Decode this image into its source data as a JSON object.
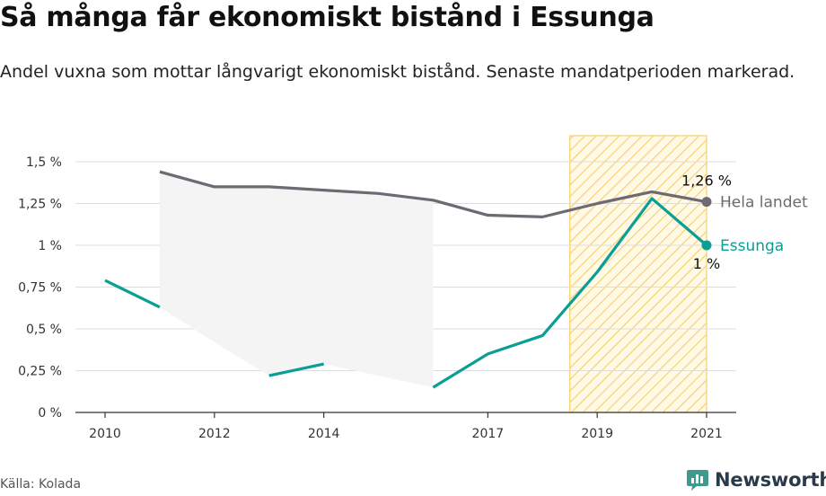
{
  "title": "Så många får ekonomiskt bistånd i Essunga",
  "subtitle": "Andel vuxna som mottar långvarigt ekonomiskt bistånd. Senaste mandatperioden markerad.",
  "source": "Källa: Kolada",
  "brand": {
    "name": "Newsworthy"
  },
  "colors": {
    "national": "#6d6a73",
    "local": "#0a9e94",
    "band": "#f4f4f4",
    "highlight_stroke": "#f5cf6a",
    "grid": "#dddddd"
  },
  "chart_data": {
    "type": "line",
    "x_ticks": [
      2010,
      2012,
      2014,
      2017,
      2019,
      2021
    ],
    "xlim": [
      2010,
      2021
    ],
    "y_ticks": [
      0,
      0.25,
      0.5,
      0.75,
      1,
      1.25,
      1.5
    ],
    "y_tick_labels": [
      "0 %",
      "0,25 %",
      "0,5 %",
      "0,75 %",
      "1 %",
      "1,25 %",
      "1,5 %"
    ],
    "ylim": [
      0,
      1.5
    ],
    "highlight": {
      "from": 2018.5,
      "to": 2021,
      "label": "Senaste mandatperioden"
    },
    "band": {
      "x": [
        2011,
        2012,
        2013,
        2014,
        2015,
        2016
      ],
      "upper": [
        1.44,
        1.35,
        1.35,
        1.33,
        1.31,
        1.27
      ],
      "lower": [
        0.63,
        0.42,
        0.22,
        0.29,
        0.22,
        0.15
      ]
    },
    "series": [
      {
        "name": "Hela landet",
        "key": "national",
        "x": [
          2011,
          2012,
          2013,
          2014,
          2015,
          2016,
          2017,
          2018,
          2019,
          2020,
          2021
        ],
        "y": [
          1.44,
          1.35,
          1.35,
          1.33,
          1.31,
          1.27,
          1.18,
          1.17,
          1.25,
          1.32,
          1.26
        ],
        "end_label": "1,26 %"
      },
      {
        "name": "Essunga",
        "key": "local",
        "x": [
          2010,
          2011,
          2012,
          2013,
          2014,
          2015,
          2016,
          2017,
          2018,
          2019,
          2020,
          2021
        ],
        "y": [
          0.79,
          0.63,
          null,
          0.22,
          0.29,
          null,
          0.15,
          0.35,
          0.46,
          0.84,
          1.28,
          1.0
        ],
        "end_label": "1 %"
      }
    ]
  }
}
